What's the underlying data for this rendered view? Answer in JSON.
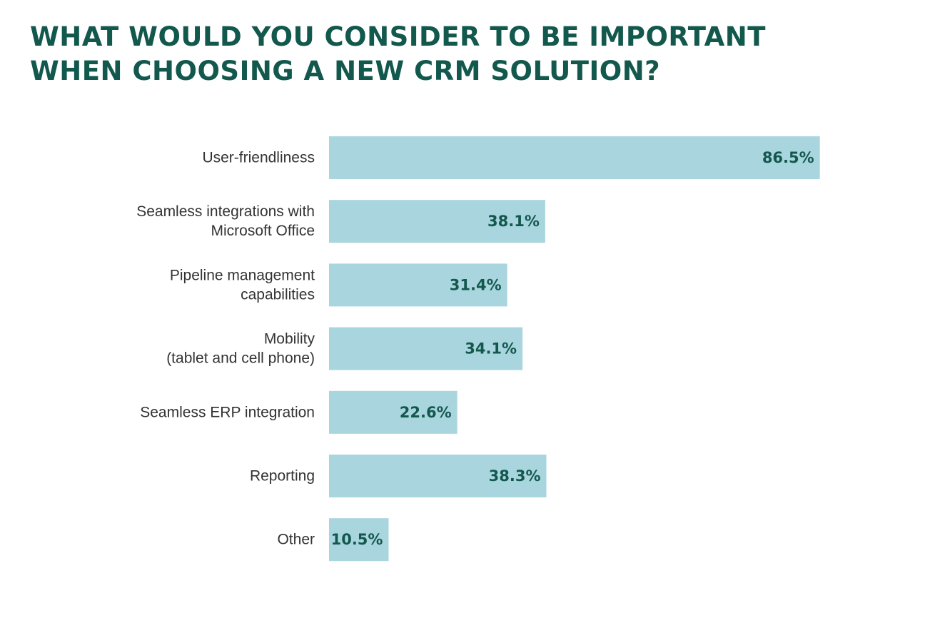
{
  "title": {
    "line1": "WHAT WOULD YOU CONSIDER TO BE IMPORTANT",
    "line2": "WHEN CHOOSING A NEW CRM SOLUTION?"
  },
  "chart_data": {
    "type": "bar",
    "orientation": "horizontal",
    "title": "WHAT WOULD YOU CONSIDER TO BE IMPORTANT WHEN CHOOSING A NEW CRM SOLUTION?",
    "categories": [
      [
        "User-friendliness"
      ],
      [
        "Seamless integrations with",
        "Microsoft Office"
      ],
      [
        "Pipeline management",
        "capabilities"
      ],
      [
        "Mobility",
        "(tablet and cell phone)"
      ],
      [
        "Seamless ERP integration"
      ],
      [
        "Reporting"
      ],
      [
        "Other"
      ]
    ],
    "values": [
      86.5,
      38.1,
      31.4,
      34.1,
      22.6,
      38.3,
      10.5
    ],
    "value_labels": [
      "86.5%",
      "38.1%",
      "31.4%",
      "34.1%",
      "22.6%",
      "38.3%",
      "10.5%"
    ],
    "unit": "%",
    "xlim": [
      0,
      100
    ],
    "xlabel": "",
    "ylabel": "",
    "grid": false,
    "legend": "none",
    "colors": {
      "bar": "#a9d5df",
      "value_text": "#13584d",
      "category_text": "#333333",
      "title": "#13584d"
    }
  }
}
